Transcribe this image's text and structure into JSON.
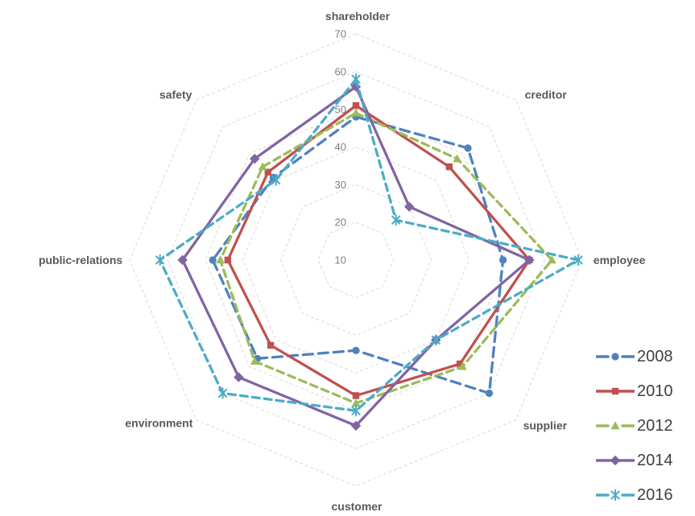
{
  "chart_data": {
    "type": "radar",
    "title": "",
    "categories": [
      "shareholder",
      "creditor",
      "employee",
      "supplier",
      "customer",
      "environment",
      "public-relations",
      "safety"
    ],
    "series": [
      {
        "name": "2008",
        "color": "#4F81BD",
        "line_style": "dashed",
        "marker": "circle",
        "values": [
          48,
          52,
          49,
          60,
          34,
          47,
          48,
          41
        ]
      },
      {
        "name": "2010",
        "color": "#C0504D",
        "line_style": "solid",
        "marker": "square",
        "values": [
          51,
          45,
          56,
          49,
          46,
          42,
          44,
          43
        ]
      },
      {
        "name": "2012",
        "color": "#9BBB59",
        "line_style": "dashed",
        "marker": "triangle",
        "values": [
          49,
          48,
          62,
          50,
          48,
          48,
          46,
          45
        ]
      },
      {
        "name": "2014",
        "color": "#8064A2",
        "line_style": "solid",
        "marker": "diamond",
        "values": [
          56,
          30,
          56,
          40,
          54,
          54,
          56,
          48
        ]
      },
      {
        "name": "2016",
        "color": "#4BACC6",
        "line_style": "dashed",
        "marker": "asterisk",
        "values": [
          58,
          25,
          69,
          40,
          50,
          60,
          62,
          40
        ]
      }
    ],
    "axis": {
      "min": 10,
      "max": 70,
      "step": 10,
      "tick_labels": [
        "10",
        "20",
        "30",
        "40",
        "50",
        "60",
        "70"
      ]
    },
    "grid": "dashed-light-gray",
    "grid_color": "#DADADA",
    "legend_position": "right-bottom",
    "background": "#FFFFFF"
  }
}
